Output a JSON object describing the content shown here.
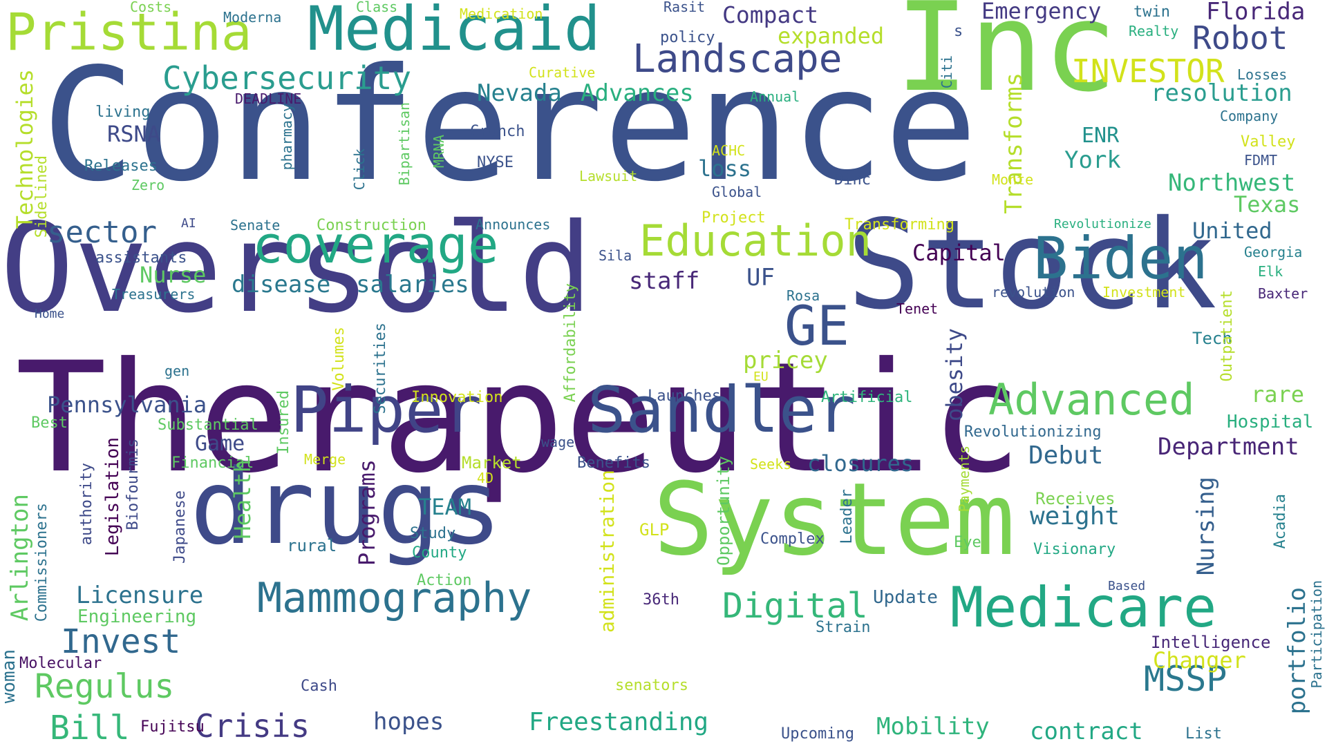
{
  "words": [
    {
      "text": "Conference",
      "color": "#3b528b"
    },
    {
      "text": "Therapeutic",
      "color": "#481a6c"
    },
    {
      "text": "Oversold",
      "color": "#433e85"
    },
    {
      "text": "Stock",
      "color": "#3e4a89"
    },
    {
      "text": "Inc",
      "color": "#7ad151"
    },
    {
      "text": "System",
      "color": "#7ad151"
    },
    {
      "text": "drugs",
      "color": "#3e4a89"
    },
    {
      "text": "Medicaid",
      "color": "#21918c"
    },
    {
      "text": "Pristina",
      "color": "#a5db36"
    },
    {
      "text": "Piper",
      "color": "#414487"
    },
    {
      "text": "Sandler",
      "color": "#3b528b"
    },
    {
      "text": "coverage",
      "color": "#22a884"
    },
    {
      "text": "Biden",
      "color": "#2c728e"
    },
    {
      "text": "Medicare",
      "color": "#22a884"
    },
    {
      "text": "Landscape",
      "color": "#3e4a89"
    },
    {
      "text": "Education",
      "color": "#a5db36"
    },
    {
      "text": "Mammography",
      "color": "#2c728e"
    },
    {
      "text": "Advanced",
      "color": "#5ec962"
    },
    {
      "text": "GE",
      "color": "#3b528b"
    },
    {
      "text": "Cybersecurity",
      "color": "#2a9d8f"
    },
    {
      "text": "Robot",
      "color": "#3e4a89"
    },
    {
      "text": "INVESTOR",
      "color": "#d2e21b"
    },
    {
      "text": "Emergency",
      "color": "#443a83"
    },
    {
      "text": "Florida",
      "color": "#482878"
    },
    {
      "text": "Compact",
      "color": "#443983"
    },
    {
      "text": "expanded",
      "color": "#b5de2b"
    },
    {
      "text": "sector",
      "color": "#355f8d"
    },
    {
      "text": "Digital",
      "color": "#35b779"
    },
    {
      "text": "MSSP",
      "color": "#2a788e"
    },
    {
      "text": "Crisis",
      "color": "#443a83"
    },
    {
      "text": "Invest",
      "color": "#31688e"
    },
    {
      "text": "Regulus",
      "color": "#5ec962"
    },
    {
      "text": "Bill",
      "color": "#35b779"
    },
    {
      "text": "Pennsylvania",
      "color": "#3b528b"
    },
    {
      "text": "Department",
      "color": "#482576"
    },
    {
      "text": "Debut",
      "color": "#31688e"
    },
    {
      "text": "closures",
      "color": "#31688e"
    },
    {
      "text": "resolution",
      "color": "#2a9d8f"
    },
    {
      "text": "Nevada",
      "color": "#26818e"
    },
    {
      "text": "Advances",
      "color": "#29af7f"
    },
    {
      "text": "Transforms",
      "color": "#b5de2b"
    },
    {
      "text": "Technologies",
      "color": "#b5de2b"
    },
    {
      "text": "Northwest",
      "color": "#35b779"
    },
    {
      "text": "York",
      "color": "#2a9d8f"
    },
    {
      "text": "Texas",
      "color": "#5ec962"
    },
    {
      "text": "United",
      "color": "#31688e"
    },
    {
      "text": "Capital",
      "color": "#440154"
    },
    {
      "text": "staff",
      "color": "#482878"
    },
    {
      "text": "UF",
      "color": "#3b528b"
    },
    {
      "text": "salaries",
      "color": "#2a788e"
    },
    {
      "text": "disease",
      "color": "#2a788e"
    },
    {
      "text": "Nurse",
      "color": "#5ec962"
    },
    {
      "text": "RSNA",
      "color": "#3e4a89"
    },
    {
      "text": "obesity",
      "color": "#3e4a89"
    },
    {
      "text": "pricey",
      "color": "#a5db36"
    },
    {
      "text": "weight",
      "color": "#2c728e"
    },
    {
      "text": "rare",
      "color": "#7ad151"
    },
    {
      "text": "Programs",
      "color": "#481a6c"
    },
    {
      "text": "Nursing",
      "color": "#355f8d"
    },
    {
      "text": "portfolio",
      "color": "#2c728e"
    },
    {
      "text": "Freestanding",
      "color": "#22a884"
    },
    {
      "text": "Mobility",
      "color": "#2fb47c"
    },
    {
      "text": "contract",
      "color": "#22a884"
    },
    {
      "text": "hopes",
      "color": "#3b528b"
    },
    {
      "text": "Licensure",
      "color": "#2c728e"
    },
    {
      "text": "administration",
      "color": "#d2e21b"
    },
    {
      "text": "Changer",
      "color": "#d2e21b"
    },
    {
      "text": "Arlington",
      "color": "#5ec962"
    },
    {
      "text": "Health",
      "color": "#5ec962"
    },
    {
      "text": "TEAM",
      "color": "#26818e"
    },
    {
      "text": "Game",
      "color": "#3e4a89"
    },
    {
      "text": "ENR",
      "color": "#21918c"
    },
    {
      "text": "Update",
      "color": "#31688e"
    },
    {
      "text": "Intelligence",
      "color": "#482878"
    },
    {
      "text": "Hospital",
      "color": "#29af7f"
    },
    {
      "text": "Tech",
      "color": "#26818e"
    },
    {
      "text": "Outpatient",
      "color": "#b5de2b"
    },
    {
      "text": "Opportunity",
      "color": "#5ec962"
    },
    {
      "text": "Affordability",
      "color": "#7ad151"
    },
    {
      "text": "Securities",
      "color": "#2c728e"
    },
    {
      "text": "Volumes",
      "color": "#d2e21b"
    },
    {
      "text": "Insured",
      "color": "#5ec962"
    },
    {
      "text": "Legislation",
      "color": "#440154"
    },
    {
      "text": "authority",
      "color": "#3e4a89"
    },
    {
      "text": "Japanese",
      "color": "#3e4a89"
    },
    {
      "text": "Biofourmis",
      "color": "#3e4a89"
    },
    {
      "text": "Commissioners",
      "color": "#2c728e"
    },
    {
      "text": "woman",
      "color": "#2c728e"
    },
    {
      "text": "Molecular",
      "color": "#471063"
    },
    {
      "text": "Engineering",
      "color": "#5ec962"
    },
    {
      "text": "Cash",
      "color": "#3e4a89"
    },
    {
      "text": "Fujitsu",
      "color": "#440154"
    },
    {
      "text": "senators",
      "color": "#b5de2b"
    },
    {
      "text": "Upcoming",
      "color": "#3b528b"
    },
    {
      "text": "List",
      "color": "#2c728e"
    },
    {
      "text": "36th",
      "color": "#482878"
    },
    {
      "text": "Strain",
      "color": "#2c728e"
    },
    {
      "text": "GLP",
      "color": "#d2e21b"
    },
    {
      "text": "rural",
      "color": "#2c728e"
    },
    {
      "text": "Study",
      "color": "#2c728e"
    },
    {
      "text": "County",
      "color": "#22a884"
    },
    {
      "text": "Action",
      "color": "#5ec962"
    },
    {
      "text": "Complex",
      "color": "#3b528b"
    },
    {
      "text": "Leader",
      "color": "#2c728e"
    },
    {
      "text": "Eye",
      "color": "#5ec962"
    },
    {
      "text": "Payments",
      "color": "#a5db36"
    },
    {
      "text": "Receives",
      "color": "#7ad151"
    },
    {
      "text": "Visionary",
      "color": "#22a884"
    },
    {
      "text": "Acadia",
      "color": "#26818e"
    },
    {
      "text": "Based",
      "color": "#3b528b"
    },
    {
      "text": "Participation",
      "color": "#2c728e"
    },
    {
      "text": "Merge",
      "color": "#d2e21b"
    },
    {
      "text": "Market",
      "color": "#b5de2b"
    },
    {
      "text": "4D",
      "color": "#d2e21b"
    },
    {
      "text": "Financial",
      "color": "#5ec962"
    },
    {
      "text": "Substantial",
      "color": "#5ec962"
    },
    {
      "text": "Best",
      "color": "#5ec962"
    },
    {
      "text": "Innovation",
      "color": "#d2e21b"
    },
    {
      "text": "Launches",
      "color": "#3b528b"
    },
    {
      "text": "Artificial",
      "color": "#2fb47c"
    },
    {
      "text": "EU",
      "color": "#d2e21b"
    },
    {
      "text": "wage",
      "color": "#3b528b"
    },
    {
      "text": "Benefits",
      "color": "#3b528b"
    },
    {
      "text": "Seeks",
      "color": "#d2e21b"
    },
    {
      "text": "Revolutionizing",
      "color": "#31688e"
    },
    {
      "text": "gen",
      "color": "#2c728e"
    },
    {
      "text": "Home",
      "color": "#3b528b"
    },
    {
      "text": "Treasurers",
      "color": "#2c728e"
    },
    {
      "text": "assistants",
      "color": "#3b528b"
    },
    {
      "text": "AI",
      "color": "#3e4a89"
    },
    {
      "text": "Senate",
      "color": "#2c728e"
    },
    {
      "text": "Construction",
      "color": "#7ad151"
    },
    {
      "text": "Announces",
      "color": "#2c728e"
    },
    {
      "text": "Project",
      "color": "#d2e21b"
    },
    {
      "text": "Transforming",
      "color": "#d2e21b"
    },
    {
      "text": "Revolutionize",
      "color": "#29af7f"
    },
    {
      "text": "Sila",
      "color": "#3b528b"
    },
    {
      "text": "revolution",
      "color": "#3b528b"
    },
    {
      "text": "Investment",
      "color": "#d2e21b"
    },
    {
      "text": "Rosa",
      "color": "#2c728e"
    },
    {
      "text": "Tenet",
      "color": "#440154"
    },
    {
      "text": "Baxter",
      "color": "#482878"
    },
    {
      "text": "Elk",
      "color": "#29af7f"
    },
    {
      "text": "Georgia",
      "color": "#26818e"
    },
    {
      "text": "Sidelined",
      "color": "#b5de2b"
    },
    {
      "text": "Zero",
      "color": "#5ec962"
    },
    {
      "text": "Releases",
      "color": "#2c728e"
    },
    {
      "text": "living",
      "color": "#2c728e"
    },
    {
      "text": "DEADLINE",
      "color": "#481a6c"
    },
    {
      "text": "pharmacy",
      "color": "#2c728e"
    },
    {
      "text": "Click",
      "color": "#2c728e"
    },
    {
      "text": "Bipartisan",
      "color": "#5ec962"
    },
    {
      "text": "MRNA",
      "color": "#5ec962"
    },
    {
      "text": "Crunch",
      "color": "#3b528b"
    },
    {
      "text": "NYSE",
      "color": "#3b528b"
    },
    {
      "text": "Lawsuit",
      "color": "#b5de2b"
    },
    {
      "text": "ACHC",
      "color": "#d2e21b"
    },
    {
      "text": "loss",
      "color": "#2c728e"
    },
    {
      "text": "Global",
      "color": "#3b528b"
    },
    {
      "text": "Dinc",
      "color": "#3b528b"
    },
    {
      "text": "Monte",
      "color": "#d2e21b"
    },
    {
      "text": "FDMT",
      "color": "#3b528b"
    },
    {
      "text": "Valley",
      "color": "#d2e21b"
    },
    {
      "text": "Company",
      "color": "#2c728e"
    },
    {
      "text": "Losses",
      "color": "#2c728e"
    },
    {
      "text": "Realty",
      "color": "#29af7f"
    },
    {
      "text": "twin",
      "color": "#2c728e"
    },
    {
      "text": "Citi",
      "color": "#2c728e"
    },
    {
      "text": "s",
      "color": "#3b528b"
    },
    {
      "text": "Annual",
      "color": "#29af7f"
    },
    {
      "text": "Curative",
      "color": "#d2e21b"
    },
    {
      "text": "policy",
      "color": "#3b528b"
    },
    {
      "text": "Rasit",
      "color": "#3b528b"
    },
    {
      "text": "Medication",
      "color": "#d2e21b"
    },
    {
      "text": "Class",
      "color": "#5ec962"
    },
    {
      "text": "Moderna",
      "color": "#2c728e"
    },
    {
      "text": "Costs",
      "color": "#7ad151"
    }
  ]
}
